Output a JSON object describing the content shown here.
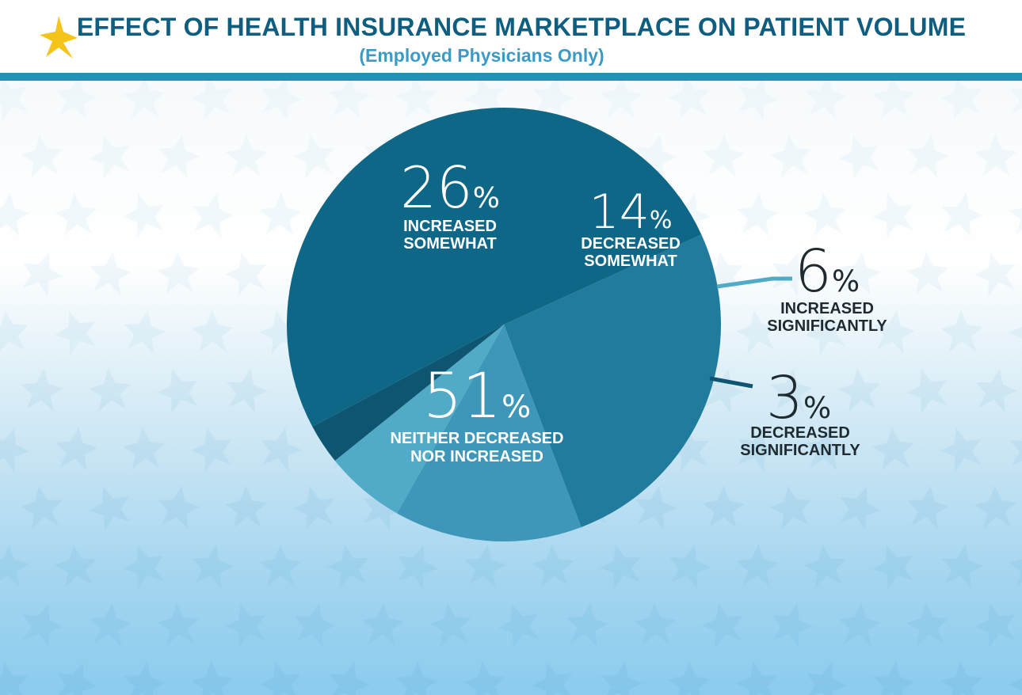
{
  "header": {
    "title": "EFFECT OF HEALTH INSURANCE MARKETPLACE ON PATIENT VOLUME",
    "subtitle": "(Employed Physicians Only)",
    "logo_icon": "star-logo-icon"
  },
  "colors": {
    "header_rule": "#2a8fb6",
    "title": "#0f5e7f",
    "subtitle": "#3b9bc6",
    "star_logo": "#f5c41a"
  },
  "chart_data": {
    "type": "pie",
    "title": "EFFECT OF HEALTH INSURANCE MARKETPLACE ON PATIENT VOLUME",
    "subtitle": "(Employed Physicians Only)",
    "slices": [
      {
        "label": [
          "INCREASED",
          "SOMEWHAT"
        ],
        "value": 26,
        "display": "26",
        "color": "#217b9d",
        "label_position": "inside",
        "text_color": "#ffffff"
      },
      {
        "label": [
          "DECREASED",
          "SOMEWHAT"
        ],
        "value": 14,
        "display": "14",
        "color": "#3e97b9",
        "label_position": "inside",
        "text_color": "#ffffff"
      },
      {
        "label": [
          "INCREASED",
          "SIGNIFICANTLY"
        ],
        "value": 6,
        "display": "6",
        "color": "#52abc6",
        "label_position": "outside",
        "text_color": "#1f2a30"
      },
      {
        "label": [
          "DECREASED",
          "SIGNIFICANTLY"
        ],
        "value": 3,
        "display": "3",
        "color": "#0d5570",
        "label_position": "outside",
        "text_color": "#1f2a30"
      },
      {
        "label": [
          "NEITHER DECREASED",
          "NOR INCREASED"
        ],
        "value": 51,
        "display": "51",
        "color": "#0f6787",
        "label_position": "inside",
        "text_color": "#ffffff"
      }
    ],
    "percent_sign": "%",
    "legend": "none"
  }
}
